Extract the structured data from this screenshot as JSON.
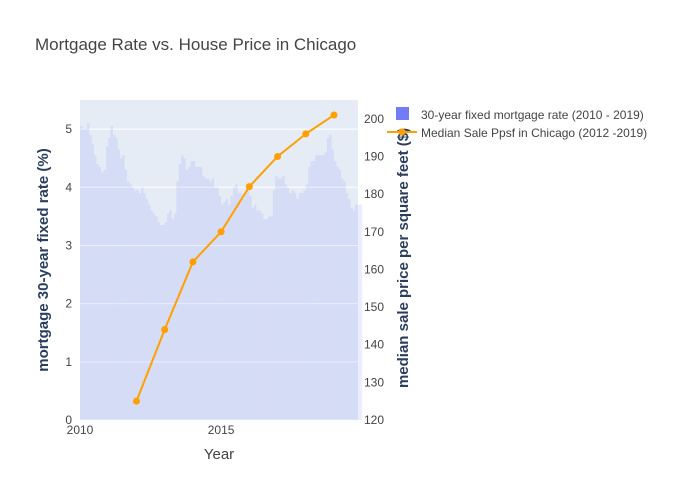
{
  "chart_data": {
    "type": "bar+line",
    "title": "Mortgage Rate vs. House Price in Chicago",
    "xlabel": "Year",
    "ylabel_left": "mortgage 30-year fixed rate (%)",
    "ylabel_right": "median sale price per square feet ($)",
    "xlim": [
      2010,
      2019.85
    ],
    "ylim_left": [
      0,
      5.5
    ],
    "ylim_right": [
      120,
      205
    ],
    "x_ticks": [
      "2010",
      "2015"
    ],
    "y_ticks_left": [
      "0",
      "1",
      "2",
      "3",
      "4",
      "5"
    ],
    "y_ticks_right": [
      "120",
      "130",
      "140",
      "150",
      "160",
      "170",
      "180",
      "190",
      "200"
    ],
    "legend_position": "top-right",
    "bar_color": "#636efa",
    "line_color": "#ff9f00",
    "plot_background": "#e5ecf6",
    "series": [
      {
        "name": "30-year fixed mortgage rate (2010 - 2019)",
        "type": "bar",
        "x": [
          "2010-01",
          "2010-02",
          "2010-03",
          "2010-04",
          "2010-05",
          "2010-06",
          "2010-07",
          "2010-08",
          "2010-09",
          "2010-10",
          "2010-11",
          "2010-12",
          "2011-01",
          "2011-02",
          "2011-03",
          "2011-04",
          "2011-05",
          "2011-06",
          "2011-07",
          "2011-08",
          "2011-09",
          "2011-10",
          "2011-11",
          "2011-12",
          "2012-01",
          "2012-02",
          "2012-03",
          "2012-04",
          "2012-05",
          "2012-06",
          "2012-07",
          "2012-08",
          "2012-09",
          "2012-10",
          "2012-11",
          "2012-12",
          "2013-01",
          "2013-02",
          "2013-03",
          "2013-04",
          "2013-05",
          "2013-06",
          "2013-07",
          "2013-08",
          "2013-09",
          "2013-10",
          "2013-11",
          "2013-12",
          "2014-01",
          "2014-02",
          "2014-03",
          "2014-04",
          "2014-05",
          "2014-06",
          "2014-07",
          "2014-08",
          "2014-09",
          "2014-10",
          "2014-11",
          "2014-12",
          "2015-01",
          "2015-02",
          "2015-03",
          "2015-04",
          "2015-05",
          "2015-06",
          "2015-07",
          "2015-08",
          "2015-09",
          "2015-10",
          "2015-11",
          "2015-12",
          "2016-01",
          "2016-02",
          "2016-03",
          "2016-04",
          "2016-05",
          "2016-06",
          "2016-07",
          "2016-08",
          "2016-09",
          "2016-10",
          "2016-11",
          "2016-12",
          "2017-01",
          "2017-02",
          "2017-03",
          "2017-04",
          "2017-05",
          "2017-06",
          "2017-07",
          "2017-08",
          "2017-09",
          "2017-10",
          "2017-11",
          "2017-12",
          "2018-01",
          "2018-02",
          "2018-03",
          "2018-04",
          "2018-05",
          "2018-06",
          "2018-07",
          "2018-08",
          "2018-09",
          "2018-10",
          "2018-11",
          "2018-12",
          "2019-01",
          "2019-02",
          "2019-03",
          "2019-04",
          "2019-05",
          "2019-06",
          "2019-07",
          "2019-08",
          "2019-09",
          "2019-10",
          "2019-11",
          "2019-12"
        ],
        "values": [
          5.05,
          5.0,
          5.02,
          5.1,
          4.9,
          4.75,
          4.55,
          4.4,
          4.35,
          4.25,
          4.3,
          4.7,
          4.85,
          5.05,
          4.9,
          4.85,
          4.65,
          4.5,
          4.55,
          4.3,
          4.1,
          4.05,
          4.0,
          3.95,
          3.95,
          3.9,
          4.0,
          3.9,
          3.8,
          3.7,
          3.6,
          3.55,
          3.5,
          3.4,
          3.35,
          3.35,
          3.4,
          3.55,
          3.6,
          3.45,
          3.55,
          4.1,
          4.4,
          4.55,
          4.5,
          4.3,
          4.35,
          4.45,
          4.45,
          4.35,
          4.35,
          4.35,
          4.2,
          4.15,
          4.15,
          4.1,
          4.15,
          4.0,
          4.0,
          3.85,
          3.7,
          3.75,
          3.8,
          3.7,
          3.85,
          4.0,
          4.05,
          3.9,
          3.9,
          3.8,
          3.9,
          3.95,
          3.85,
          3.65,
          3.7,
          3.6,
          3.6,
          3.55,
          3.45,
          3.45,
          3.5,
          3.5,
          3.95,
          4.2,
          4.15,
          4.15,
          4.2,
          4.05,
          4.0,
          3.9,
          3.95,
          3.9,
          3.8,
          3.9,
          3.9,
          3.95,
          4.05,
          4.35,
          4.45,
          4.45,
          4.55,
          4.55,
          4.55,
          4.55,
          4.6,
          4.85,
          4.9,
          4.65,
          4.45,
          4.35,
          4.3,
          4.15,
          4.1,
          3.9,
          3.8,
          3.65,
          3.6,
          3.7,
          3.7,
          3.7
        ]
      },
      {
        "name": "Median Sale Ppsf in Chicago (2012 -2019)",
        "type": "line+markers",
        "x": [
          2012,
          2013,
          2014,
          2015,
          2016,
          2017,
          2018,
          2019
        ],
        "values": [
          125,
          144,
          162,
          170,
          182,
          190,
          196,
          201
        ]
      }
    ]
  }
}
